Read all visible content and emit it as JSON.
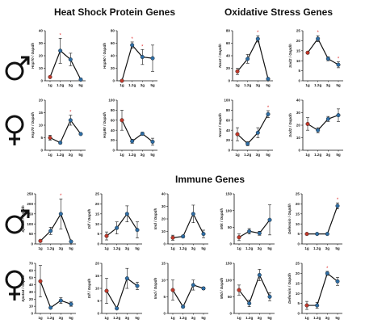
{
  "headings": {
    "heat_shock": "Heat Shock Protein Genes",
    "oxidative": "Oxidative Stress Genes",
    "immune": "Immune Genes"
  },
  "colors": {
    "control_point": "#c0392b",
    "treatment_point": "#2e6da4",
    "line": "#111111",
    "significance": "#e03030"
  },
  "x_categories": [
    "1g",
    "1.2g",
    "3g",
    "5g"
  ],
  "sex_symbols": [
    "male",
    "female",
    "male",
    "female"
  ],
  "chart_data": [
    {
      "type": "line",
      "row": 0,
      "col": 0,
      "ylabel": "Hsp70 / Gapdh",
      "ylim": [
        0,
        40
      ],
      "yticks": [
        0,
        10,
        20,
        30,
        40
      ],
      "values": [
        3,
        24,
        17,
        1
      ],
      "errors": [
        0,
        10,
        5,
        1
      ],
      "significant": [
        false,
        true,
        false,
        false
      ]
    },
    {
      "type": "line",
      "row": 0,
      "col": 1,
      "ylabel": "Hsp90 / Gapdh",
      "ylim": [
        0,
        80
      ],
      "yticks": [
        0,
        20,
        40,
        60,
        80
      ],
      "values": [
        0,
        57,
        38,
        36
      ],
      "errors": [
        0,
        5,
        12,
        21
      ],
      "significant": [
        false,
        true,
        true,
        false
      ]
    },
    {
      "type": "line",
      "row": 0,
      "col": 2,
      "ylabel": "Nox2 / Gapdh",
      "ylim": [
        0,
        80
      ],
      "yticks": [
        0,
        20,
        40,
        60,
        80
      ],
      "values": [
        15,
        35,
        67,
        3
      ],
      "errors": [
        5,
        7,
        5,
        1
      ],
      "significant": [
        false,
        false,
        true,
        false
      ]
    },
    {
      "type": "line",
      "row": 0,
      "col": 3,
      "ylabel": "Sod2 / Gapdh",
      "ylim": [
        0,
        25
      ],
      "yticks": [
        0,
        5,
        10,
        15,
        20,
        25
      ],
      "values": [
        14,
        21,
        11,
        8
      ],
      "errors": [
        0.5,
        1.5,
        1,
        1.5
      ],
      "significant": [
        false,
        true,
        false,
        true
      ]
    },
    {
      "type": "line",
      "row": 1,
      "col": 0,
      "ylabel": "Hsp70 / Gapdh",
      "ylim": [
        0,
        20
      ],
      "yticks": [
        0,
        5,
        10,
        15,
        20
      ],
      "values": [
        5,
        3,
        12,
        6.5
      ],
      "errors": [
        1,
        0.5,
        2,
        0.3
      ],
      "significant": [
        false,
        false,
        true,
        false
      ]
    },
    {
      "type": "line",
      "row": 1,
      "col": 1,
      "ylabel": "Hsp90 / Gapdh",
      "ylim": [
        0,
        100
      ],
      "yticks": [
        0,
        20,
        40,
        60,
        80,
        100
      ],
      "values": [
        60,
        18,
        33,
        17
      ],
      "errors": [
        20,
        4,
        3,
        7
      ],
      "significant": [
        false,
        false,
        false,
        false
      ]
    },
    {
      "type": "line",
      "row": 1,
      "col": 2,
      "ylabel": "Nox2 / Gapdh",
      "ylim": [
        0,
        100
      ],
      "yticks": [
        0,
        20,
        40,
        60,
        80,
        100
      ],
      "values": [
        32,
        13,
        35,
        72
      ],
      "errors": [
        13,
        4,
        10,
        7
      ],
      "significant": [
        false,
        false,
        false,
        true
      ]
    },
    {
      "type": "line",
      "row": 1,
      "col": 3,
      "ylabel": "Sod2 / Gapdh",
      "ylim": [
        0,
        40
      ],
      "yticks": [
        0,
        10,
        20,
        30,
        40
      ],
      "values": [
        21,
        16,
        25,
        28
      ],
      "errors": [
        5,
        2,
        2,
        5
      ],
      "significant": [
        false,
        false,
        false,
        false
      ]
    },
    {
      "type": "line",
      "row": 2,
      "col": 0,
      "ylabel": "Spata4 / Gapdh",
      "ylim": [
        0,
        250
      ],
      "yticks": [
        0,
        50,
        100,
        150,
        200,
        250
      ],
      "values": [
        15,
        65,
        150,
        12
      ],
      "errors": [
        5,
        18,
        75,
        5
      ],
      "significant": [
        false,
        false,
        true,
        false
      ]
    },
    {
      "type": "line",
      "row": 2,
      "col": 1,
      "ylabel": "Dlf / Gapdh",
      "ylim": [
        0,
        25
      ],
      "yticks": [
        0,
        5,
        10,
        15,
        20,
        25
      ],
      "values": [
        4,
        8,
        15,
        7
      ],
      "errors": [
        2,
        3,
        4,
        4
      ],
      "significant": [
        false,
        false,
        false,
        false
      ]
    },
    {
      "type": "line",
      "row": 2,
      "col": 2,
      "ylabel": "Imd / Gapdh",
      "ylim": [
        0,
        40
      ],
      "yticks": [
        0,
        10,
        20,
        30,
        40
      ],
      "values": [
        5,
        6,
        24,
        8
      ],
      "errors": [
        2,
        1,
        7,
        3
      ],
      "significant": [
        false,
        false,
        false,
        false
      ]
    },
    {
      "type": "line",
      "row": 2,
      "col": 3,
      "ylabel": "Mtk / Gapdh",
      "ylim": [
        0,
        150
      ],
      "yticks": [
        0,
        50,
        100,
        150
      ],
      "values": [
        20,
        38,
        32,
        72
      ],
      "errors": [
        10,
        8,
        6,
        45
      ],
      "significant": [
        false,
        false,
        false,
        false
      ]
    },
    {
      "type": "line",
      "row": 2,
      "col": 4,
      "ylabel": "Defensin / Gapdh",
      "ylim": [
        0,
        25
      ],
      "yticks": [
        0,
        5,
        10,
        15,
        20,
        25
      ],
      "values": [
        5,
        5,
        5,
        19
      ],
      "errors": [
        0.3,
        0.3,
        0.3,
        1.5
      ],
      "significant": [
        false,
        false,
        false,
        true
      ]
    },
    {
      "type": "line",
      "row": 3,
      "col": 0,
      "ylabel": "Spata4 / Gapdh",
      "ylim": [
        0,
        70
      ],
      "yticks": [
        0,
        10,
        20,
        30,
        40,
        50,
        60,
        70
      ],
      "values": [
        45,
        8,
        18,
        13
      ],
      "errors": [
        22,
        1,
        4,
        3
      ],
      "significant": [
        false,
        false,
        false,
        false
      ]
    },
    {
      "type": "line",
      "row": 3,
      "col": 1,
      "ylabel": "Dlf / Gapdh",
      "ylim": [
        0,
        20
      ],
      "yticks": [
        0,
        5,
        10,
        15,
        20
      ],
      "values": [
        9,
        2,
        14,
        11
      ],
      "errors": [
        5,
        0.3,
        4,
        1.5
      ],
      "significant": [
        false,
        false,
        false,
        false
      ]
    },
    {
      "type": "line",
      "row": 3,
      "col": 2,
      "ylabel": "Imd / Gapdh",
      "ylim": [
        0,
        15
      ],
      "yticks": [
        0,
        5,
        10,
        15
      ],
      "values": [
        7,
        2,
        8.5,
        7.5
      ],
      "errors": [
        3,
        0.3,
        1.5,
        0.4
      ],
      "significant": [
        false,
        false,
        false,
        false
      ]
    },
    {
      "type": "line",
      "row": 3,
      "col": 3,
      "ylabel": "Mtd / Gapdh",
      "ylim": [
        0,
        150
      ],
      "yticks": [
        0,
        50,
        100,
        150
      ],
      "values": [
        70,
        30,
        115,
        50
      ],
      "errors": [
        15,
        10,
        17,
        12
      ],
      "significant": [
        false,
        false,
        false,
        false
      ]
    },
    {
      "type": "line",
      "row": 3,
      "col": 4,
      "ylabel": "Defensin / Gapdh",
      "ylim": [
        0,
        25
      ],
      "yticks": [
        0,
        5,
        10,
        15,
        20,
        25
      ],
      "values": [
        4,
        4,
        20,
        16
      ],
      "errors": [
        2,
        1.5,
        1,
        2
      ],
      "significant": [
        false,
        false,
        true,
        false
      ]
    }
  ]
}
